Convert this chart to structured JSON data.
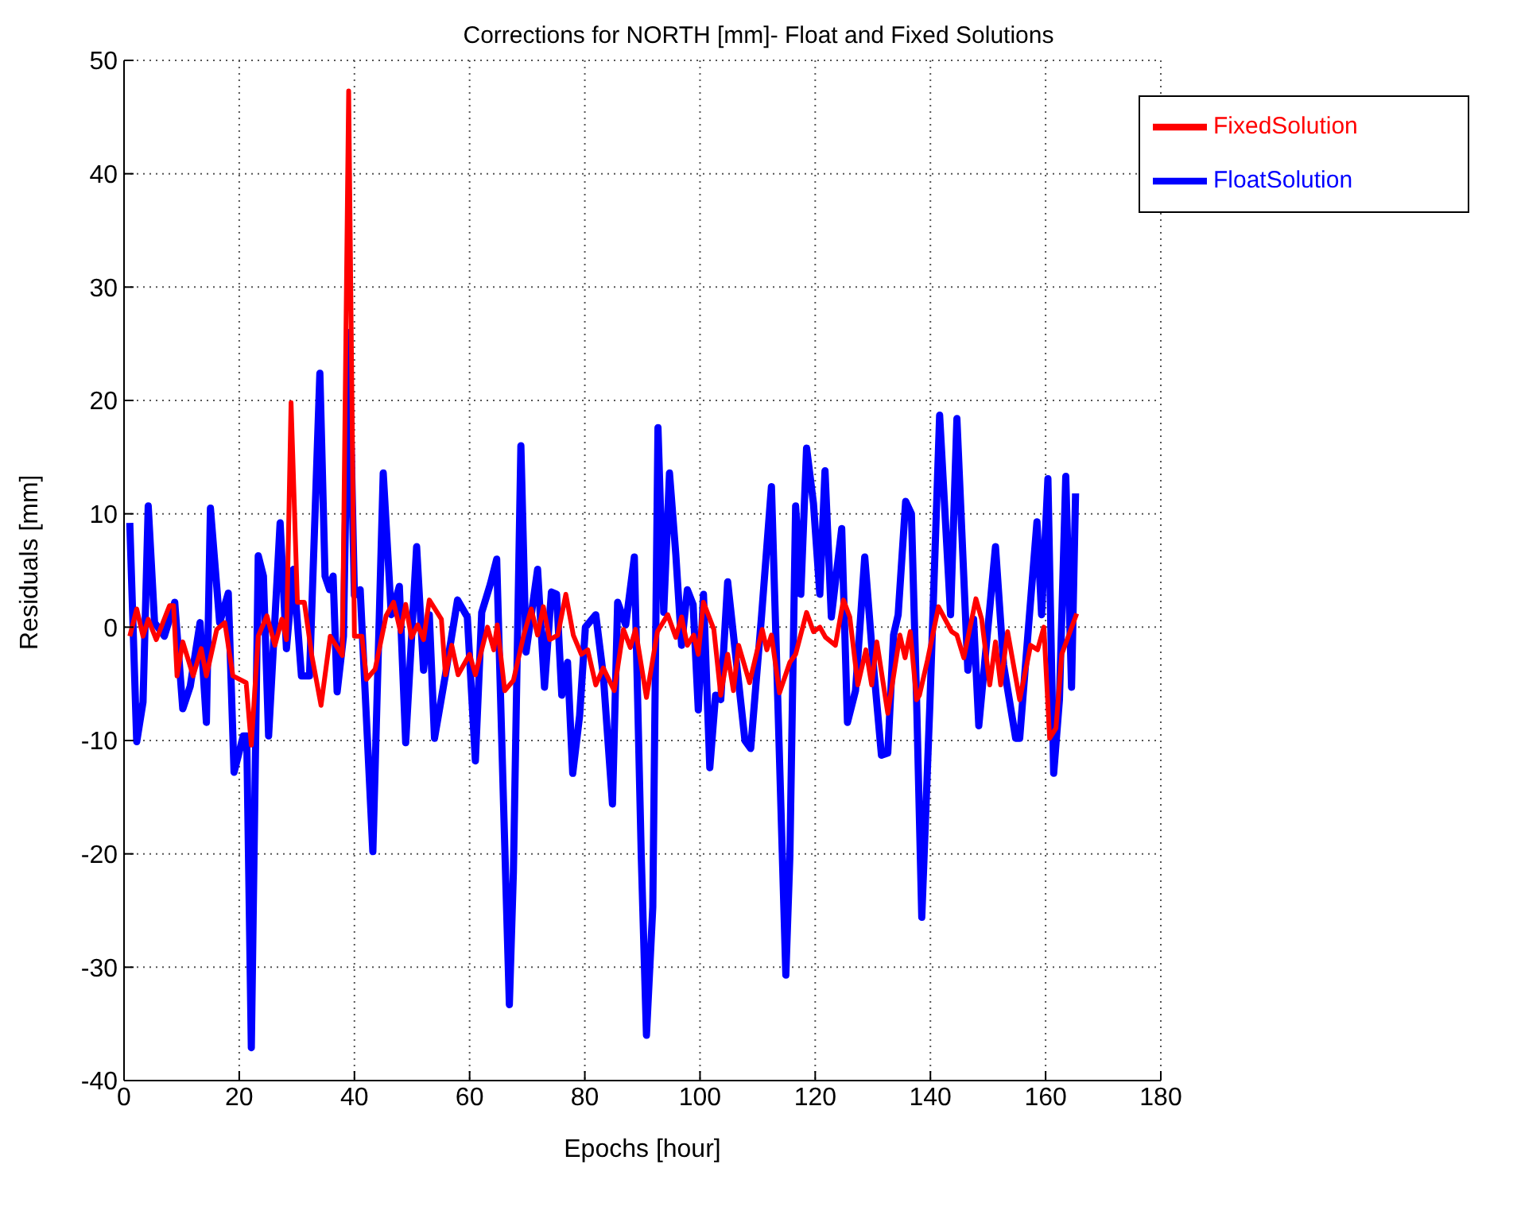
{
  "chart_data": {
    "type": "line",
    "title": "Corrections for NORTH [mm]- Float and Fixed Solutions",
    "xlabel": "Epochs [hour]",
    "ylabel": "Residuals [mm]",
    "xlim": [
      0,
      180
    ],
    "xticks": [
      0,
      20,
      40,
      60,
      80,
      100,
      120,
      140,
      160,
      180
    ],
    "ylim": [
      -40,
      50
    ],
    "yticks": [
      -40,
      -30,
      -20,
      -10,
      0,
      10,
      20,
      30,
      40,
      50
    ],
    "grid": true,
    "legend": "top right",
    "marker": "none",
    "line_style": "solid",
    "series": [
      {
        "name": "FloatSolution",
        "color": "#0000ff",
        "x": [
          1,
          2.2,
          3.3,
          4.2,
          5.3,
          7,
          8.8,
          10.2,
          11.5,
          13.2,
          14.3,
          15,
          16.6,
          18.1,
          19.1,
          20.7,
          21.3,
          22.1,
          23.3,
          24.2,
          25.1,
          27.1,
          28.2,
          29.4,
          30.8,
          32.2,
          34,
          34.9,
          35.7,
          36.3,
          37,
          38.1,
          39,
          40,
          41,
          43.2,
          45,
          46.4,
          47.8,
          48.9,
          50.8,
          52,
          53,
          53.9,
          55.8,
          57.9,
          59.6,
          61,
          62.1,
          63.6,
          64.7,
          65.9,
          66.9,
          67.6,
          68.9,
          69.8,
          71.8,
          73,
          74.2,
          75.1,
          76,
          77,
          77.9,
          79.1,
          80.1,
          81.9,
          83.2,
          84.8,
          85.7,
          87.1,
          88.6,
          89.8,
          90.7,
          91.8,
          92.7,
          93.7,
          94.7,
          95.8,
          96.8,
          97.8,
          98.8,
          99.7,
          100.6,
          101.7,
          102.7,
          103.6,
          104.8,
          107.8,
          108.8,
          110.7,
          112.4,
          113.5,
          114.9,
          115.6,
          116.6,
          117.5,
          118.5,
          119.7,
          120.8,
          121.7,
          122.8,
          124.6,
          125.6,
          127,
          128.6,
          129.8,
          131.5,
          132.6,
          133.6,
          134.4,
          135.7,
          136.7,
          137.6,
          138.5,
          139.9,
          141.6,
          143.5,
          144.6,
          146.5,
          147.5,
          148.4,
          151.3,
          152.7,
          154.8,
          155.5,
          157.2,
          158.5,
          159.3,
          160.4,
          161.4,
          162.4,
          163.5,
          164.5,
          165.2
        ],
        "values": [
          9.2,
          -10.1,
          -6.6,
          10.7,
          0.4,
          -0.8,
          2.2,
          -7.2,
          -5.2,
          0.4,
          -8.4,
          10.5,
          0.4,
          3,
          -12.8,
          -9.6,
          -9.6,
          -37.1,
          6.3,
          4.5,
          -9.6,
          9.2,
          -1.9,
          5.1,
          -4.3,
          -4.3,
          22.4,
          4.5,
          3.3,
          4.5,
          -5.7,
          -0.8,
          26,
          2.8,
          3.3,
          -19.8,
          13.6,
          1.1,
          3.6,
          -10.2,
          7.1,
          -3.8,
          1.1,
          -9.8,
          -4.2,
          2.4,
          0.9,
          -11.8,
          1.3,
          3.8,
          6,
          -15.8,
          -33.3,
          -21.6,
          16,
          -2.2,
          5.1,
          -5.3,
          3.1,
          2.9,
          -6,
          -3.1,
          -12.9,
          -7.8,
          0,
          1.1,
          -4.2,
          -15.6,
          2.2,
          0.2,
          6.2,
          -20.2,
          -36,
          -24.7,
          17.6,
          1.3,
          13.6,
          6.4,
          -1.6,
          3.3,
          2,
          -7.3,
          2.9,
          -12.4,
          -6,
          -6.4,
          4,
          -10,
          -10.7,
          1.1,
          12.4,
          -6.4,
          -30.7,
          -20.2,
          10.7,
          2.9,
          15.8,
          10.9,
          2.9,
          13.8,
          0.9,
          8.7,
          -8.4,
          -5.6,
          6.2,
          -1.6,
          -11.3,
          -11.1,
          -0.7,
          1.1,
          11.1,
          10,
          -6.4,
          -25.6,
          -6.9,
          18.7,
          1.1,
          18.4,
          -3.8,
          0.7,
          -8.7,
          7.1,
          -3.3,
          -9.8,
          -9.8,
          1.1,
          9.3,
          1.1,
          13.1,
          -12.9,
          -6.4,
          13.3,
          -5.3,
          11.8
        ]
      },
      {
        "name": "FixedSolution",
        "color": "#ff0000",
        "x": [
          1,
          2.2,
          3.3,
          4.2,
          5.6,
          7.9,
          8.6,
          9.2,
          10.2,
          12,
          13.4,
          14.3,
          16.1,
          17.5,
          18.9,
          21.2,
          22.1,
          23.3,
          24.8,
          26.2,
          27.4,
          28.2,
          29,
          30.1,
          31.3,
          32.6,
          34.2,
          35.8,
          37.9,
          39,
          40,
          41.3,
          42.1,
          43.6,
          45.5,
          46.8,
          48,
          48.9,
          49.9,
          51,
          52,
          53,
          55.1,
          55.8,
          56.9,
          58,
          60,
          61,
          63.1,
          64.2,
          64.8,
          66.1,
          67.6,
          69.4,
          70.7,
          71.8,
          72.8,
          73.9,
          75.3,
          76.7,
          78,
          79.4,
          80.5,
          81.9,
          83.2,
          85.1,
          86.7,
          87.9,
          88.8,
          90.7,
          92.6,
          94.4,
          95.8,
          96.8,
          97.8,
          98.9,
          99.7,
          100.6,
          102.4,
          103.6,
          104.8,
          105.8,
          106.7,
          108.6,
          110.8,
          111.6,
          112.4,
          113.8,
          115.6,
          116.6,
          118.5,
          119.7,
          120.8,
          121.8,
          123.5,
          124.9,
          126,
          127.4,
          128.8,
          129.8,
          130.7,
          132.6,
          134.7,
          135.6,
          136.5,
          137.6,
          138.1,
          139.5,
          141.4,
          143.7,
          144.6,
          145.8,
          147.9,
          148.9,
          150.3,
          151.3,
          152.2,
          153.4,
          155.5,
          157.4,
          158.6,
          159.7,
          160.7,
          161.8,
          162.8,
          165.4
        ],
        "values": [
          -0.8,
          1.6,
          -0.8,
          0.7,
          -1.1,
          1.9,
          1.9,
          -4.3,
          -1.3,
          -4.3,
          -1.9,
          -4.3,
          -0.2,
          0.4,
          -4.3,
          -4.9,
          -10.4,
          -0.8,
          1,
          -1.6,
          0.7,
          -1.1,
          19.8,
          2.2,
          2.2,
          -2.5,
          -6.9,
          -0.8,
          -2.5,
          47.3,
          -0.8,
          -0.8,
          -4.6,
          -3.7,
          1,
          2.2,
          -0.4,
          2,
          -0.9,
          0.2,
          -1.1,
          2.4,
          0.7,
          -4.2,
          -1.6,
          -4.2,
          -2.4,
          -4.2,
          0,
          -2,
          0.2,
          -5.6,
          -4.7,
          -0.7,
          1.6,
          -0.7,
          1.8,
          -1.1,
          -0.7,
          2.9,
          -0.7,
          -2.4,
          -2,
          -5.1,
          -3.6,
          -5.6,
          -0.2,
          -1.8,
          -0.2,
          -6.2,
          -0.4,
          1.1,
          -0.9,
          0.9,
          -1.6,
          -0.7,
          -2.4,
          2.2,
          -0.2,
          -6,
          -2.4,
          -5.6,
          -1.6,
          -4.9,
          -0.2,
          -2,
          -0.7,
          -5.8,
          -3.1,
          -2.4,
          1.3,
          -0.4,
          0,
          -0.9,
          -1.6,
          2.4,
          0.9,
          -5.1,
          -2,
          -5.1,
          -1.3,
          -7.6,
          -0.7,
          -2.7,
          -0.4,
          -6.4,
          -6,
          -2.9,
          1.8,
          -0.4,
          -0.7,
          -2.7,
          2.5,
          0.7,
          -5.1,
          -1.3,
          -5.1,
          -0.4,
          -6.4,
          -1.6,
          -2,
          0,
          -9.8,
          -8.9,
          -2.4,
          1.2
        ]
      }
    ]
  }
}
